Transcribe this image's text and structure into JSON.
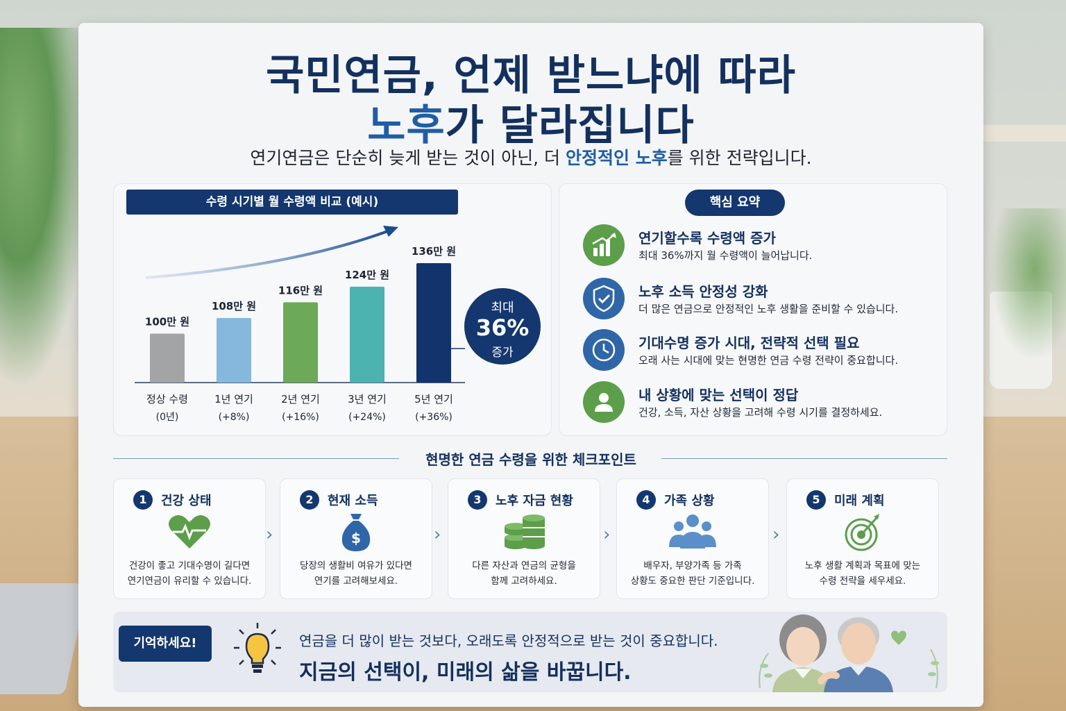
{
  "header": {
    "title_line1": "국민연금, 언제 받느냐에 따라",
    "title_line2_accent": "노후",
    "title_line2_rest": "가 달라집니다",
    "subtitle_pre": "연기연금은 단순히 늦게 받는 것이 아닌, 더 ",
    "subtitle_accent": "안정적인 노후",
    "subtitle_post": "를 위한 전략입니다."
  },
  "chart_data": {
    "type": "bar",
    "title": "수령 시기별 월 수령액 비교 (예시)",
    "categories": [
      "정상 수령",
      "1년 연기",
      "2년 연기",
      "3년 연기",
      "5년 연기"
    ],
    "sublabels": [
      "(0년)",
      "(+8%)",
      "(+16%)",
      "(+24%)",
      "(+36%)"
    ],
    "values": [
      100,
      108,
      116,
      124,
      136
    ],
    "value_labels": [
      "100만 원",
      "108만 원",
      "116만 원",
      "124만 원",
      "136만 원"
    ],
    "colors": [
      "#a3a4a6",
      "#86b8de",
      "#6caa57",
      "#4db3b1",
      "#12336c"
    ],
    "unit": "만 원",
    "callout": {
      "line1": "최대",
      "line2": "36%",
      "line3": "증가"
    }
  },
  "summary": {
    "title": "핵심 요약",
    "items": [
      {
        "heading": "연기할수록 수령액 증가",
        "desc": "최대 36%까지 월 수령액이 늘어납니다.",
        "icon": "bar-chart-icon",
        "color": "#5c9e4a"
      },
      {
        "heading": "노후 소득 안정성 강화",
        "desc": "더 많은 연금으로 안정적인 노후 생활을 준비할 수 있습니다.",
        "icon": "shield-check-icon",
        "color": "#2f66a8"
      },
      {
        "heading": "기대수명 증가 시대, 전략적 선택 필요",
        "desc": "오래 사는 시대에 맞는 현명한 연금 수령 전략이 중요합니다.",
        "icon": "clock-icon",
        "color": "#2f66a8"
      },
      {
        "heading": "내 상황에 맞는 선택이 정답",
        "desc": "건강, 소득, 자산 상황을 고려해 수령 시기를 결정하세요.",
        "icon": "person-icon",
        "color": "#5c9e4a"
      }
    ]
  },
  "checkpoints": {
    "title": "현명한 연금 수령을 위한 체크포인트",
    "items": [
      {
        "num": "1",
        "heading": "건강 상태",
        "line1": "건강이 좋고 기대수명이 길다면",
        "line2": "연기연금이 유리할 수 있습니다.",
        "icon": "heart-pulse-icon"
      },
      {
        "num": "2",
        "heading": "현재 소득",
        "line1": "당장의 생활비 여유가 있다면",
        "line2": "연기를 고려해보세요.",
        "icon": "money-bag-icon"
      },
      {
        "num": "3",
        "heading": "노후 자금 현황",
        "line1": "다른 자산과 연금의 균형을",
        "line2": "함께 고려하세요.",
        "icon": "coin-stack-icon"
      },
      {
        "num": "4",
        "heading": "가족 상황",
        "line1": "배우자, 부양가족 등 가족",
        "line2": "상황도 중요한 판단 기준입니다.",
        "icon": "family-icon"
      },
      {
        "num": "5",
        "heading": "미래 계획",
        "line1": "노후 생활 계획과 목표에 맞는",
        "line2": "수령 전략을 세우세요.",
        "icon": "target-icon"
      }
    ]
  },
  "reminder": {
    "tag": "기억하세요!",
    "line1": "연금을 더 많이 받는 것보다, 오래도록 안정적으로 받는 것이 중요합니다.",
    "line2": "지금의 선택이, 미래의 삶을 바꿉니다."
  },
  "colors": {
    "navy": "#13376e",
    "blue_accent": "#1f5da6",
    "green": "#5c9e4a"
  }
}
